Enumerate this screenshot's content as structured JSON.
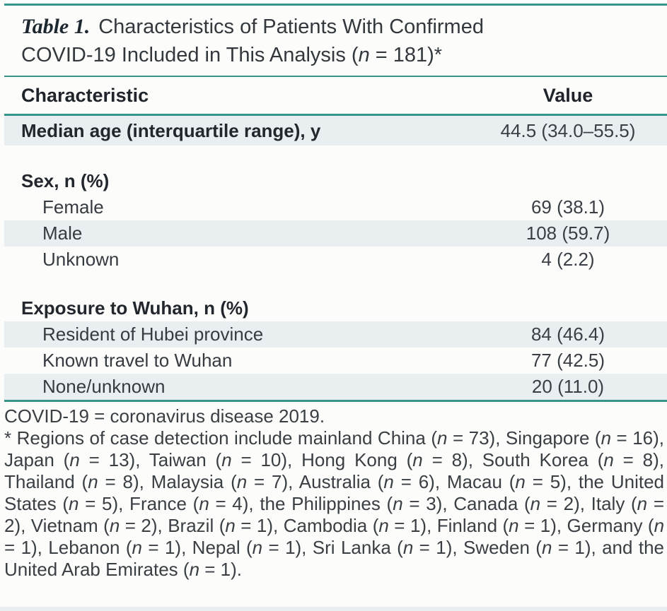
{
  "table": {
    "label": "Table 1.",
    "title_line1": "Characteristics of Patients With Confirmed",
    "title_line2": "COVID-19 Included in This Analysis (n = 181)*",
    "columns": {
      "characteristic": "Characteristic",
      "value": "Value"
    },
    "rows": [
      {
        "type": "data",
        "label": "Median age (interquartile range), y",
        "value": "44.5 (34.0–55.5)",
        "bold": true,
        "indent": false,
        "shaded": true,
        "large": true
      },
      {
        "type": "spacer"
      },
      {
        "type": "section",
        "label": "Sex, n (%)",
        "value": "",
        "bold": true,
        "indent": false,
        "shaded": false
      },
      {
        "type": "data",
        "label": "Female",
        "value": "69 (38.1)",
        "bold": false,
        "indent": true,
        "shaded": false
      },
      {
        "type": "data",
        "label": "Male",
        "value": "108 (59.7)",
        "bold": false,
        "indent": true,
        "shaded": true
      },
      {
        "type": "data",
        "label": "Unknown",
        "value": "4 (2.2)",
        "bold": false,
        "indent": true,
        "shaded": false
      },
      {
        "type": "spacer"
      },
      {
        "type": "section",
        "label": "Exposure to Wuhan, n (%)",
        "value": "",
        "bold": true,
        "indent": false,
        "shaded": false
      },
      {
        "type": "data",
        "label": "Resident of Hubei province",
        "value": "84 (46.4)",
        "bold": false,
        "indent": true,
        "shaded": true
      },
      {
        "type": "data",
        "label": "Known travel to Wuhan",
        "value": "77 (42.5)",
        "bold": false,
        "indent": true,
        "shaded": false
      },
      {
        "type": "data",
        "label": "None/unknown",
        "value": "20 (11.0)",
        "bold": false,
        "indent": true,
        "shaded": true
      }
    ],
    "footnotes": [
      "COVID-19 = coronavirus disease 2019.",
      "* Regions of case detection include mainland China (n = 73), Singapore (n = 16), Japan (n = 13), Taiwan (n = 10), Hong Kong (n = 8), South Korea (n = 8), Thailand (n = 8), Malaysia (n = 7), Australia (n = 6), Macau (n = 5), the United States (n = 5), France (n = 4), the Philippines (n = 3), Canada (n = 2), Italy (n = 2), Vietnam (n = 2), Brazil (n = 1), Cambodia (n = 1), Finland (n = 1), Germany (n = 1), Lebanon (n = 1), Nepal (n = 1), Sri Lanka (n = 1), Sweden (n = 1), and the United Arab Emirates (n = 1)."
    ],
    "colors": {
      "rule": "#36948b",
      "row_shade": "#e9eff1",
      "heading_text": "#1f242a",
      "body_text": "#363b41"
    }
  }
}
